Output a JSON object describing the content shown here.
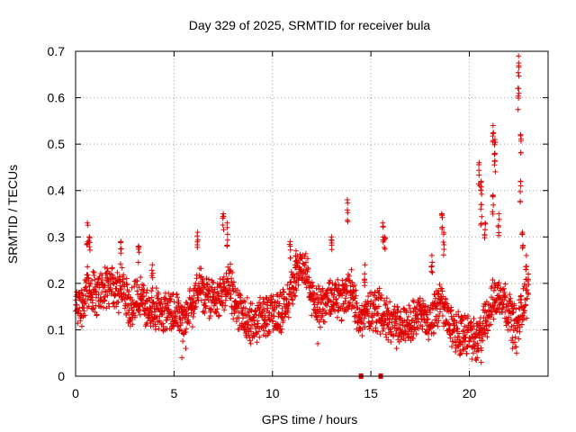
{
  "chart_data": {
    "type": "scatter",
    "title": "Day 329 of 2025, SRMTID for receiver bula",
    "xlabel": "GPS time / hours",
    "ylabel": "SRMTID / TECUs",
    "xlim": [
      0,
      24
    ],
    "ylim": [
      0,
      0.7
    ],
    "xticks": [
      0,
      5,
      10,
      15,
      20
    ],
    "xtick_labels": [
      "0",
      "5",
      "10",
      "15",
      "20"
    ],
    "yticks": [
      0,
      0.1,
      0.2,
      0.3,
      0.4,
      0.5,
      0.6,
      0.7
    ],
    "ytick_labels": [
      "0",
      "0.1",
      "0.2",
      "0.3",
      "0.4",
      "0.5",
      "0.6",
      "0.7"
    ],
    "grid": true,
    "marker": "plus",
    "series_color": "#e00000",
    "trend": [
      [
        0.0,
        0.16
      ],
      [
        0.3,
        0.14
      ],
      [
        0.6,
        0.19
      ],
      [
        0.9,
        0.18
      ],
      [
        1.2,
        0.17
      ],
      [
        1.5,
        0.19
      ],
      [
        1.8,
        0.2
      ],
      [
        2.1,
        0.18
      ],
      [
        2.4,
        0.19
      ],
      [
        2.7,
        0.15
      ],
      [
        3.0,
        0.16
      ],
      [
        3.3,
        0.18
      ],
      [
        3.6,
        0.15
      ],
      [
        4.0,
        0.14
      ],
      [
        4.5,
        0.14
      ],
      [
        5.0,
        0.14
      ],
      [
        5.5,
        0.12
      ],
      [
        6.0,
        0.16
      ],
      [
        6.3,
        0.2
      ],
      [
        6.7,
        0.17
      ],
      [
        7.0,
        0.16
      ],
      [
        7.5,
        0.18
      ],
      [
        7.8,
        0.2
      ],
      [
        8.2,
        0.14
      ],
      [
        8.6,
        0.13
      ],
      [
        9.0,
        0.11
      ],
      [
        9.5,
        0.13
      ],
      [
        10.0,
        0.14
      ],
      [
        10.5,
        0.14
      ],
      [
        11.0,
        0.19
      ],
      [
        11.3,
        0.24
      ],
      [
        11.7,
        0.22
      ],
      [
        12.0,
        0.16
      ],
      [
        12.5,
        0.15
      ],
      [
        13.0,
        0.17
      ],
      [
        13.5,
        0.16
      ],
      [
        14.0,
        0.18
      ],
      [
        14.5,
        0.12
      ],
      [
        15.0,
        0.15
      ],
      [
        15.5,
        0.14
      ],
      [
        16.0,
        0.12
      ],
      [
        16.5,
        0.11
      ],
      [
        17.0,
        0.12
      ],
      [
        17.5,
        0.13
      ],
      [
        18.0,
        0.12
      ],
      [
        18.5,
        0.16
      ],
      [
        19.0,
        0.11
      ],
      [
        19.5,
        0.09
      ],
      [
        20.0,
        0.09
      ],
      [
        20.4,
        0.07
      ],
      [
        20.8,
        0.12
      ],
      [
        21.2,
        0.16
      ],
      [
        21.6,
        0.18
      ],
      [
        22.0,
        0.14
      ],
      [
        22.4,
        0.1
      ],
      [
        22.8,
        0.17
      ]
    ],
    "spikes": [
      [
        0.6,
        0.33
      ],
      [
        0.7,
        0.3
      ],
      [
        2.3,
        0.29
      ],
      [
        3.2,
        0.28
      ],
      [
        3.9,
        0.24
      ],
      [
        6.2,
        0.31
      ],
      [
        7.5,
        0.35
      ],
      [
        7.7,
        0.33
      ],
      [
        10.9,
        0.29
      ],
      [
        11.2,
        0.27
      ],
      [
        13.0,
        0.3
      ],
      [
        13.8,
        0.38
      ],
      [
        14.7,
        0.24
      ],
      [
        15.6,
        0.33
      ],
      [
        15.7,
        0.3
      ],
      [
        18.1,
        0.26
      ],
      [
        18.6,
        0.35
      ],
      [
        18.7,
        0.31
      ],
      [
        20.5,
        0.46
      ],
      [
        20.6,
        0.42
      ],
      [
        20.6,
        0.37
      ],
      [
        20.8,
        0.33
      ],
      [
        21.2,
        0.54
      ],
      [
        21.3,
        0.51
      ],
      [
        21.3,
        0.48
      ],
      [
        21.2,
        0.39
      ],
      [
        21.5,
        0.35
      ],
      [
        22.5,
        0.69
      ],
      [
        22.5,
        0.62
      ],
      [
        22.6,
        0.52
      ],
      [
        22.6,
        0.42
      ],
      [
        22.7,
        0.31
      ],
      [
        22.9,
        0.26
      ],
      [
        23.0,
        0.22
      ]
    ],
    "dips": [
      [
        5.4,
        0.04
      ],
      [
        5.6,
        0.06
      ],
      [
        20.2,
        0.05
      ],
      [
        20.4,
        0.04
      ],
      [
        20.6,
        0.03
      ],
      [
        22.2,
        0.06
      ],
      [
        22.4,
        0.05
      ],
      [
        8.9,
        0.07
      ],
      [
        12.3,
        0.07
      ],
      [
        16.3,
        0.06
      ],
      [
        19.6,
        0.05
      ]
    ],
    "axis_flags": [
      14.5,
      15.5
    ]
  }
}
